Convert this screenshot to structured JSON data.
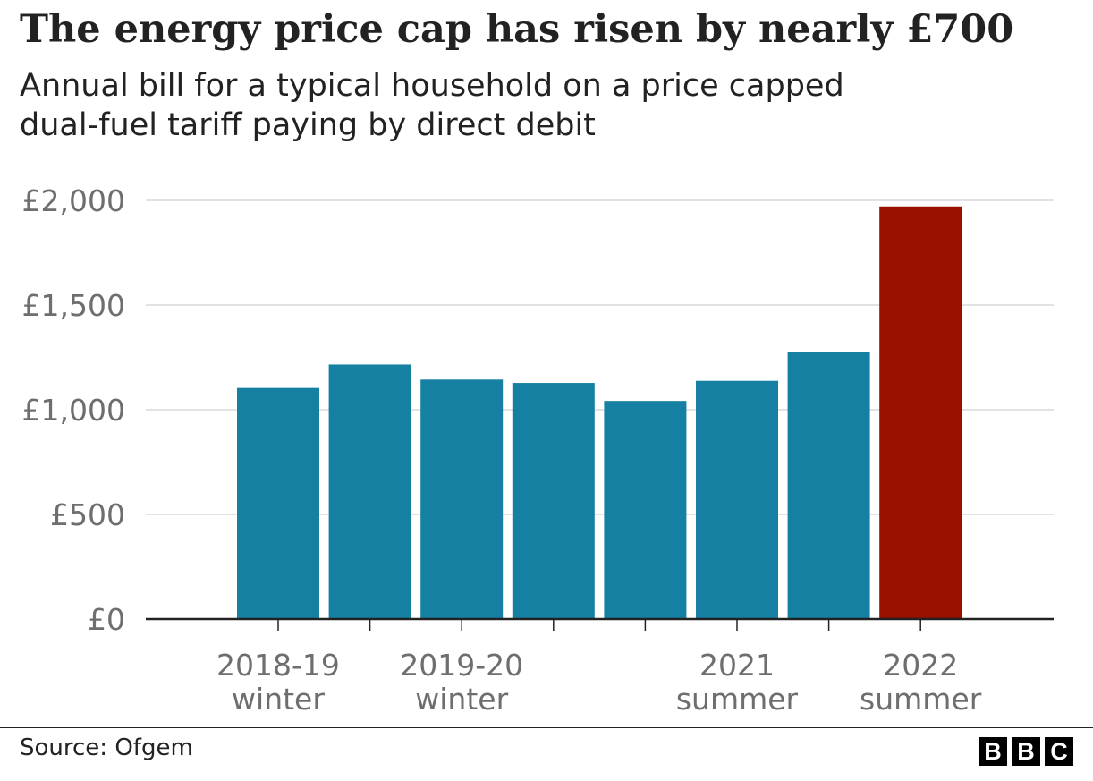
{
  "title": "The energy price cap has risen by nearly £700",
  "subtitle_lines": [
    "Annual bill for a typical household on a price capped",
    "dual-fuel tariff paying by direct debit"
  ],
  "source": "Source: Ofgem",
  "logo": [
    "B",
    "B",
    "C"
  ],
  "colors": {
    "bar": "#1580a1",
    "highlight": "#990f00",
    "grid": "#d9d9d9",
    "axis": "#222222",
    "tick_text": "#6e6e6e"
  },
  "chart_data": {
    "type": "bar",
    "title": "The energy price cap has risen by nearly £700",
    "subtitle": "Annual bill for a typical household on a price capped dual-fuel tariff paying by direct debit",
    "categories": [
      "2018-19 winter",
      "",
      "2019-20 winter",
      "",
      "",
      "2021 summer",
      "",
      "2022 summer"
    ],
    "category_label_lines": [
      [
        "2018-19",
        "winter"
      ],
      [],
      [
        "2019-20",
        "winter"
      ],
      [],
      [],
      [
        "2021",
        "summer"
      ],
      [],
      [
        "2022",
        "summer"
      ]
    ],
    "values": [
      1104,
      1216,
      1144,
      1128,
      1042,
      1138,
      1277,
      1971
    ],
    "highlight_index": 7,
    "ylim": [
      0,
      2000
    ],
    "yticks": [
      0,
      500,
      1000,
      1500,
      2000
    ],
    "ytick_labels": [
      "£0",
      "£500",
      "£1,000",
      "£1,500",
      "£2,000"
    ],
    "grid": true,
    "legend": "none",
    "xlabel": "",
    "ylabel": ""
  }
}
